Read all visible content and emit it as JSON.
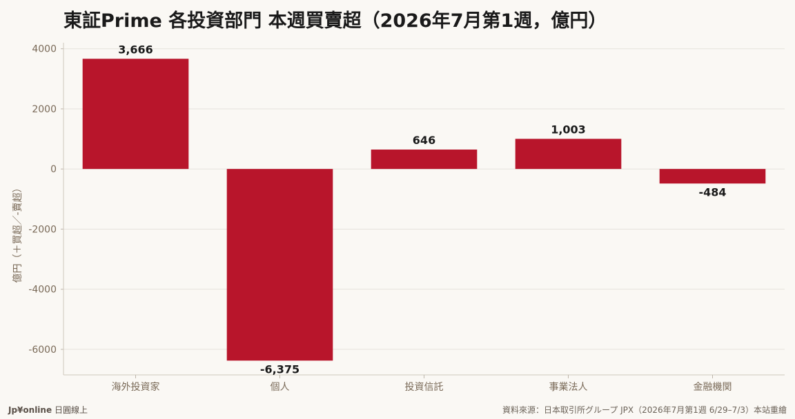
{
  "header": {
    "title": "東証Prime 各投資部門 本週買賣超（2026年7月第1週，億円）"
  },
  "footer": {
    "brand": "Jp¥online",
    "brand_sub": "日圓線上",
    "source": "資料來源：日本取引所グループ JPX（2026年7月第1週 6/29–7/3）本站重繪"
  },
  "colors": {
    "bar": "#b8152b",
    "background": "#faf8f4",
    "grid": "#e6e2dc",
    "axis_text": "#7a6a58",
    "label_text": "#1a1a1a"
  },
  "chart_data": {
    "type": "bar",
    "title": "東証Prime 各投資部門 本週買賣超（2026年7月第1週，億円）",
    "xlabel": "",
    "ylabel": "億円（＋買超／-賣超）",
    "categories": [
      "海外投資家",
      "個人",
      "投資信託",
      "事業法人",
      "金融機関"
    ],
    "values": [
      3666,
      -6375,
      646,
      1003,
      -484
    ],
    "value_labels": [
      "3,666",
      "-6,375",
      "646",
      "1,003",
      "-484"
    ],
    "ylim": [
      -6850,
      4200
    ],
    "yticks": [
      4000,
      2000,
      0,
      -2000,
      -4000,
      -6000
    ],
    "ytick_labels": [
      "4000",
      "2000",
      "0",
      "-2000",
      "-4000",
      "-6000"
    ],
    "grid": true,
    "legend": "none"
  }
}
